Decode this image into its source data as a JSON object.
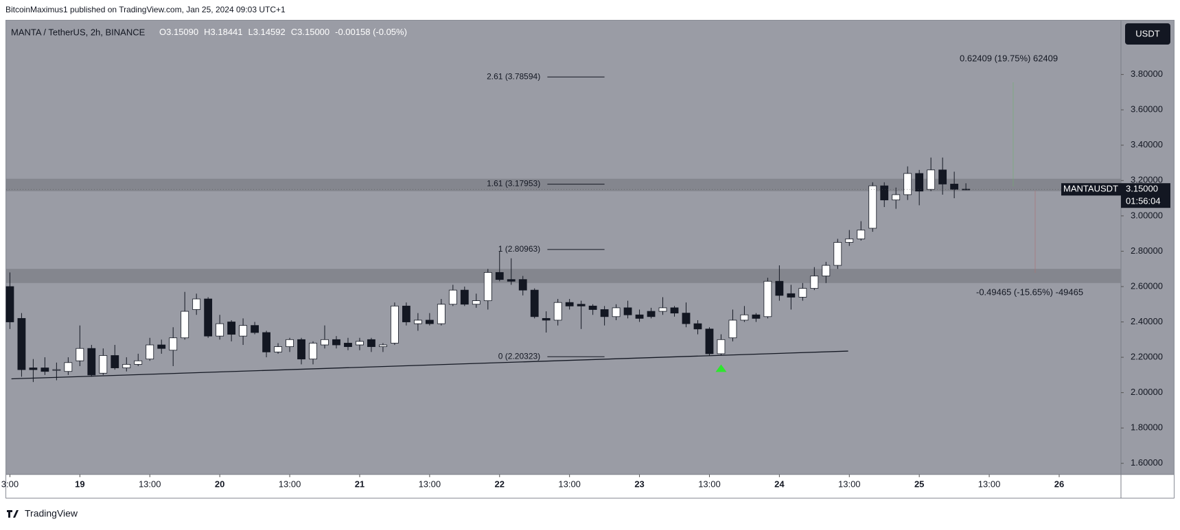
{
  "header": {
    "author_line": "BitcoinMaximus1 published on TradingView.com, Jan 25, 2024 09:03 UTC+1",
    "symbol": "MANTA / TetherUS, 2h, BINANCE",
    "ohlc": [
      {
        "key": "O",
        "value": "3.15090"
      },
      {
        "key": "H",
        "value": "3.18441"
      },
      {
        "key": "L",
        "value": "3.14592"
      },
      {
        "key": "C",
        "value": "3.15000"
      }
    ],
    "change": "-0.00158 (-0.05%)"
  },
  "footer": {
    "brand": "TradingView"
  },
  "chart_data": {
    "type": "candlestick",
    "currency": "USDT",
    "up_color": "#ffffff",
    "down_color": "#131722",
    "open": [
      2.6,
      2.42,
      2.14,
      2.14,
      2.13,
      2.12,
      2.18,
      2.25,
      2.11,
      2.21,
      2.14,
      2.16,
      2.19,
      2.27,
      2.24,
      2.31,
      2.47,
      2.53,
      2.32,
      2.4,
      2.32,
      2.38,
      2.34,
      2.23,
      2.26,
      2.3,
      2.19,
      2.27,
      2.3,
      2.28,
      2.27,
      2.3,
      2.26,
      2.28,
      2.49,
      2.39,
      2.41,
      2.39,
      2.5,
      2.58,
      2.5,
      2.52,
      2.68,
      2.64,
      2.64,
      2.58,
      2.42,
      2.41,
      2.51,
      2.5,
      2.49,
      2.47,
      2.43,
      2.48,
      2.44,
      2.46,
      2.46,
      2.48,
      2.45,
      2.39,
      2.36,
      2.22,
      2.31,
      2.41,
      2.44,
      2.43,
      2.63,
      2.56,
      2.54,
      2.59,
      2.66,
      2.72,
      2.85,
      2.87,
      2.93,
      3.17,
      3.09,
      3.12,
      3.24,
      3.15,
      3.26,
      3.18,
      3.1509
    ],
    "high": [
      2.68,
      2.45,
      2.19,
      2.2,
      2.17,
      2.2,
      2.38,
      2.27,
      2.25,
      2.27,
      2.2,
      2.22,
      2.31,
      2.3,
      2.37,
      2.57,
      2.56,
      2.54,
      2.44,
      2.41,
      2.42,
      2.4,
      2.35,
      2.28,
      2.31,
      2.31,
      2.29,
      2.38,
      2.32,
      2.31,
      2.31,
      2.31,
      2.28,
      2.51,
      2.51,
      2.45,
      2.45,
      2.53,
      2.61,
      2.6,
      2.56,
      2.7,
      2.8,
      2.76,
      2.66,
      2.59,
      2.46,
      2.53,
      2.53,
      2.52,
      2.5,
      2.49,
      2.5,
      2.52,
      2.47,
      2.48,
      2.54,
      2.49,
      2.51,
      2.41,
      2.37,
      2.33,
      2.47,
      2.49,
      2.45,
      2.65,
      2.72,
      2.61,
      2.62,
      2.71,
      2.74,
      2.87,
      2.92,
      2.97,
      3.19,
      3.19,
      3.16,
      3.28,
      3.26,
      3.33,
      3.33,
      3.25,
      3.18441
    ],
    "low": [
      2.36,
      2.09,
      2.06,
      2.1,
      2.07,
      2.1,
      2.15,
      2.09,
      2.1,
      2.13,
      2.12,
      2.15,
      2.18,
      2.22,
      2.15,
      2.3,
      2.44,
      2.31,
      2.3,
      2.29,
      2.27,
      2.33,
      2.2,
      2.22,
      2.23,
      2.16,
      2.16,
      2.25,
      2.25,
      2.24,
      2.24,
      2.23,
      2.23,
      2.27,
      2.38,
      2.35,
      2.38,
      2.38,
      2.49,
      2.49,
      2.48,
      2.47,
      2.63,
      2.61,
      2.55,
      2.42,
      2.34,
      2.38,
      2.47,
      2.36,
      2.44,
      2.38,
      2.41,
      2.42,
      2.4,
      2.42,
      2.44,
      2.43,
      2.37,
      2.33,
      2.21,
      2.21,
      2.29,
      2.4,
      2.4,
      2.42,
      2.52,
      2.47,
      2.52,
      2.58,
      2.62,
      2.7,
      2.83,
      2.86,
      2.91,
      3.05,
      3.04,
      3.09,
      3.06,
      3.14,
      3.12,
      3.1,
      3.14592
    ],
    "close": [
      2.4,
      2.13,
      2.13,
      2.12,
      2.13,
      2.17,
      2.25,
      2.1,
      2.21,
      2.14,
      2.16,
      2.18,
      2.27,
      2.25,
      2.31,
      2.46,
      2.53,
      2.32,
      2.39,
      2.33,
      2.38,
      2.34,
      2.23,
      2.26,
      2.3,
      2.19,
      2.28,
      2.3,
      2.27,
      2.26,
      2.29,
      2.26,
      2.27,
      2.49,
      2.4,
      2.41,
      2.39,
      2.5,
      2.58,
      2.5,
      2.52,
      2.68,
      2.64,
      2.63,
      2.58,
      2.43,
      2.41,
      2.51,
      2.49,
      2.49,
      2.47,
      2.43,
      2.48,
      2.44,
      2.42,
      2.43,
      2.48,
      2.45,
      2.39,
      2.36,
      2.22,
      2.3,
      2.41,
      2.44,
      2.42,
      2.63,
      2.55,
      2.54,
      2.59,
      2.66,
      2.72,
      2.85,
      2.87,
      2.92,
      3.17,
      3.09,
      3.12,
      3.24,
      3.14,
      3.26,
      3.18,
      3.15,
      3.15
    ],
    "xlim": [
      -0.32,
      95.3
    ],
    "xticks": [
      {
        "value": 0,
        "label": "3:00"
      },
      {
        "value": 6,
        "label": "19"
      },
      {
        "value": 12,
        "label": "13:00"
      },
      {
        "value": 18,
        "label": "20"
      },
      {
        "value": 24,
        "label": "13:00"
      },
      {
        "value": 30,
        "label": "21"
      },
      {
        "value": 36,
        "label": "13:00"
      },
      {
        "value": 42,
        "label": "22"
      },
      {
        "value": 48,
        "label": "13:00"
      },
      {
        "value": 54,
        "label": "23"
      },
      {
        "value": 60,
        "label": "13:00"
      },
      {
        "value": 66,
        "label": "24"
      },
      {
        "value": 72,
        "label": "13:00"
      },
      {
        "value": 78,
        "label": "25"
      },
      {
        "value": 84,
        "label": "13:00"
      },
      {
        "value": 90,
        "label": "26"
      }
    ],
    "ylim": [
      1.537,
      4.105
    ],
    "yticks": [
      {
        "value": 1.6,
        "label": "1.60000"
      },
      {
        "value": 1.8,
        "label": "1.80000"
      },
      {
        "value": 2.0,
        "label": "2.00000"
      },
      {
        "value": 2.2,
        "label": "2.20000"
      },
      {
        "value": 2.4,
        "label": "2.40000"
      },
      {
        "value": 2.6,
        "label": "2.60000"
      },
      {
        "value": 2.8,
        "label": "2.80000"
      },
      {
        "value": 3.0,
        "label": "3.00000"
      },
      {
        "value": 3.2,
        "label": "3.20000"
      },
      {
        "value": 3.4,
        "label": "3.40000"
      },
      {
        "value": 3.6,
        "label": "3.60000"
      },
      {
        "value": 3.8,
        "label": "3.80000"
      }
    ],
    "zones": [
      [
        2.62,
        2.7
      ],
      [
        3.14,
        3.21
      ]
    ],
    "trendline": {
      "x": [
        0.13,
        71.9
      ],
      "y": [
        2.078,
        2.235
      ]
    },
    "signal": {
      "x": 61,
      "y": 2.14
    },
    "fib_levels": [
      {
        "text": "2.61 (3.78594)",
        "value": 3.78594
      },
      {
        "text": "1.61 (3.17953)",
        "value": 3.17953
      },
      {
        "text": "1 (2.80963)",
        "value": 2.80963
      },
      {
        "text": "0 (2.20323)",
        "value": 2.20323
      }
    ],
    "measures": [
      "0.62409 (19.75%) 62409",
      "-0.49465 (-15.65%) -49465"
    ],
    "price_label": {
      "symbol": "MANTAUSDT",
      "price": "3.15000",
      "price_value": 3.15,
      "countdown": "01:56:04"
    }
  }
}
